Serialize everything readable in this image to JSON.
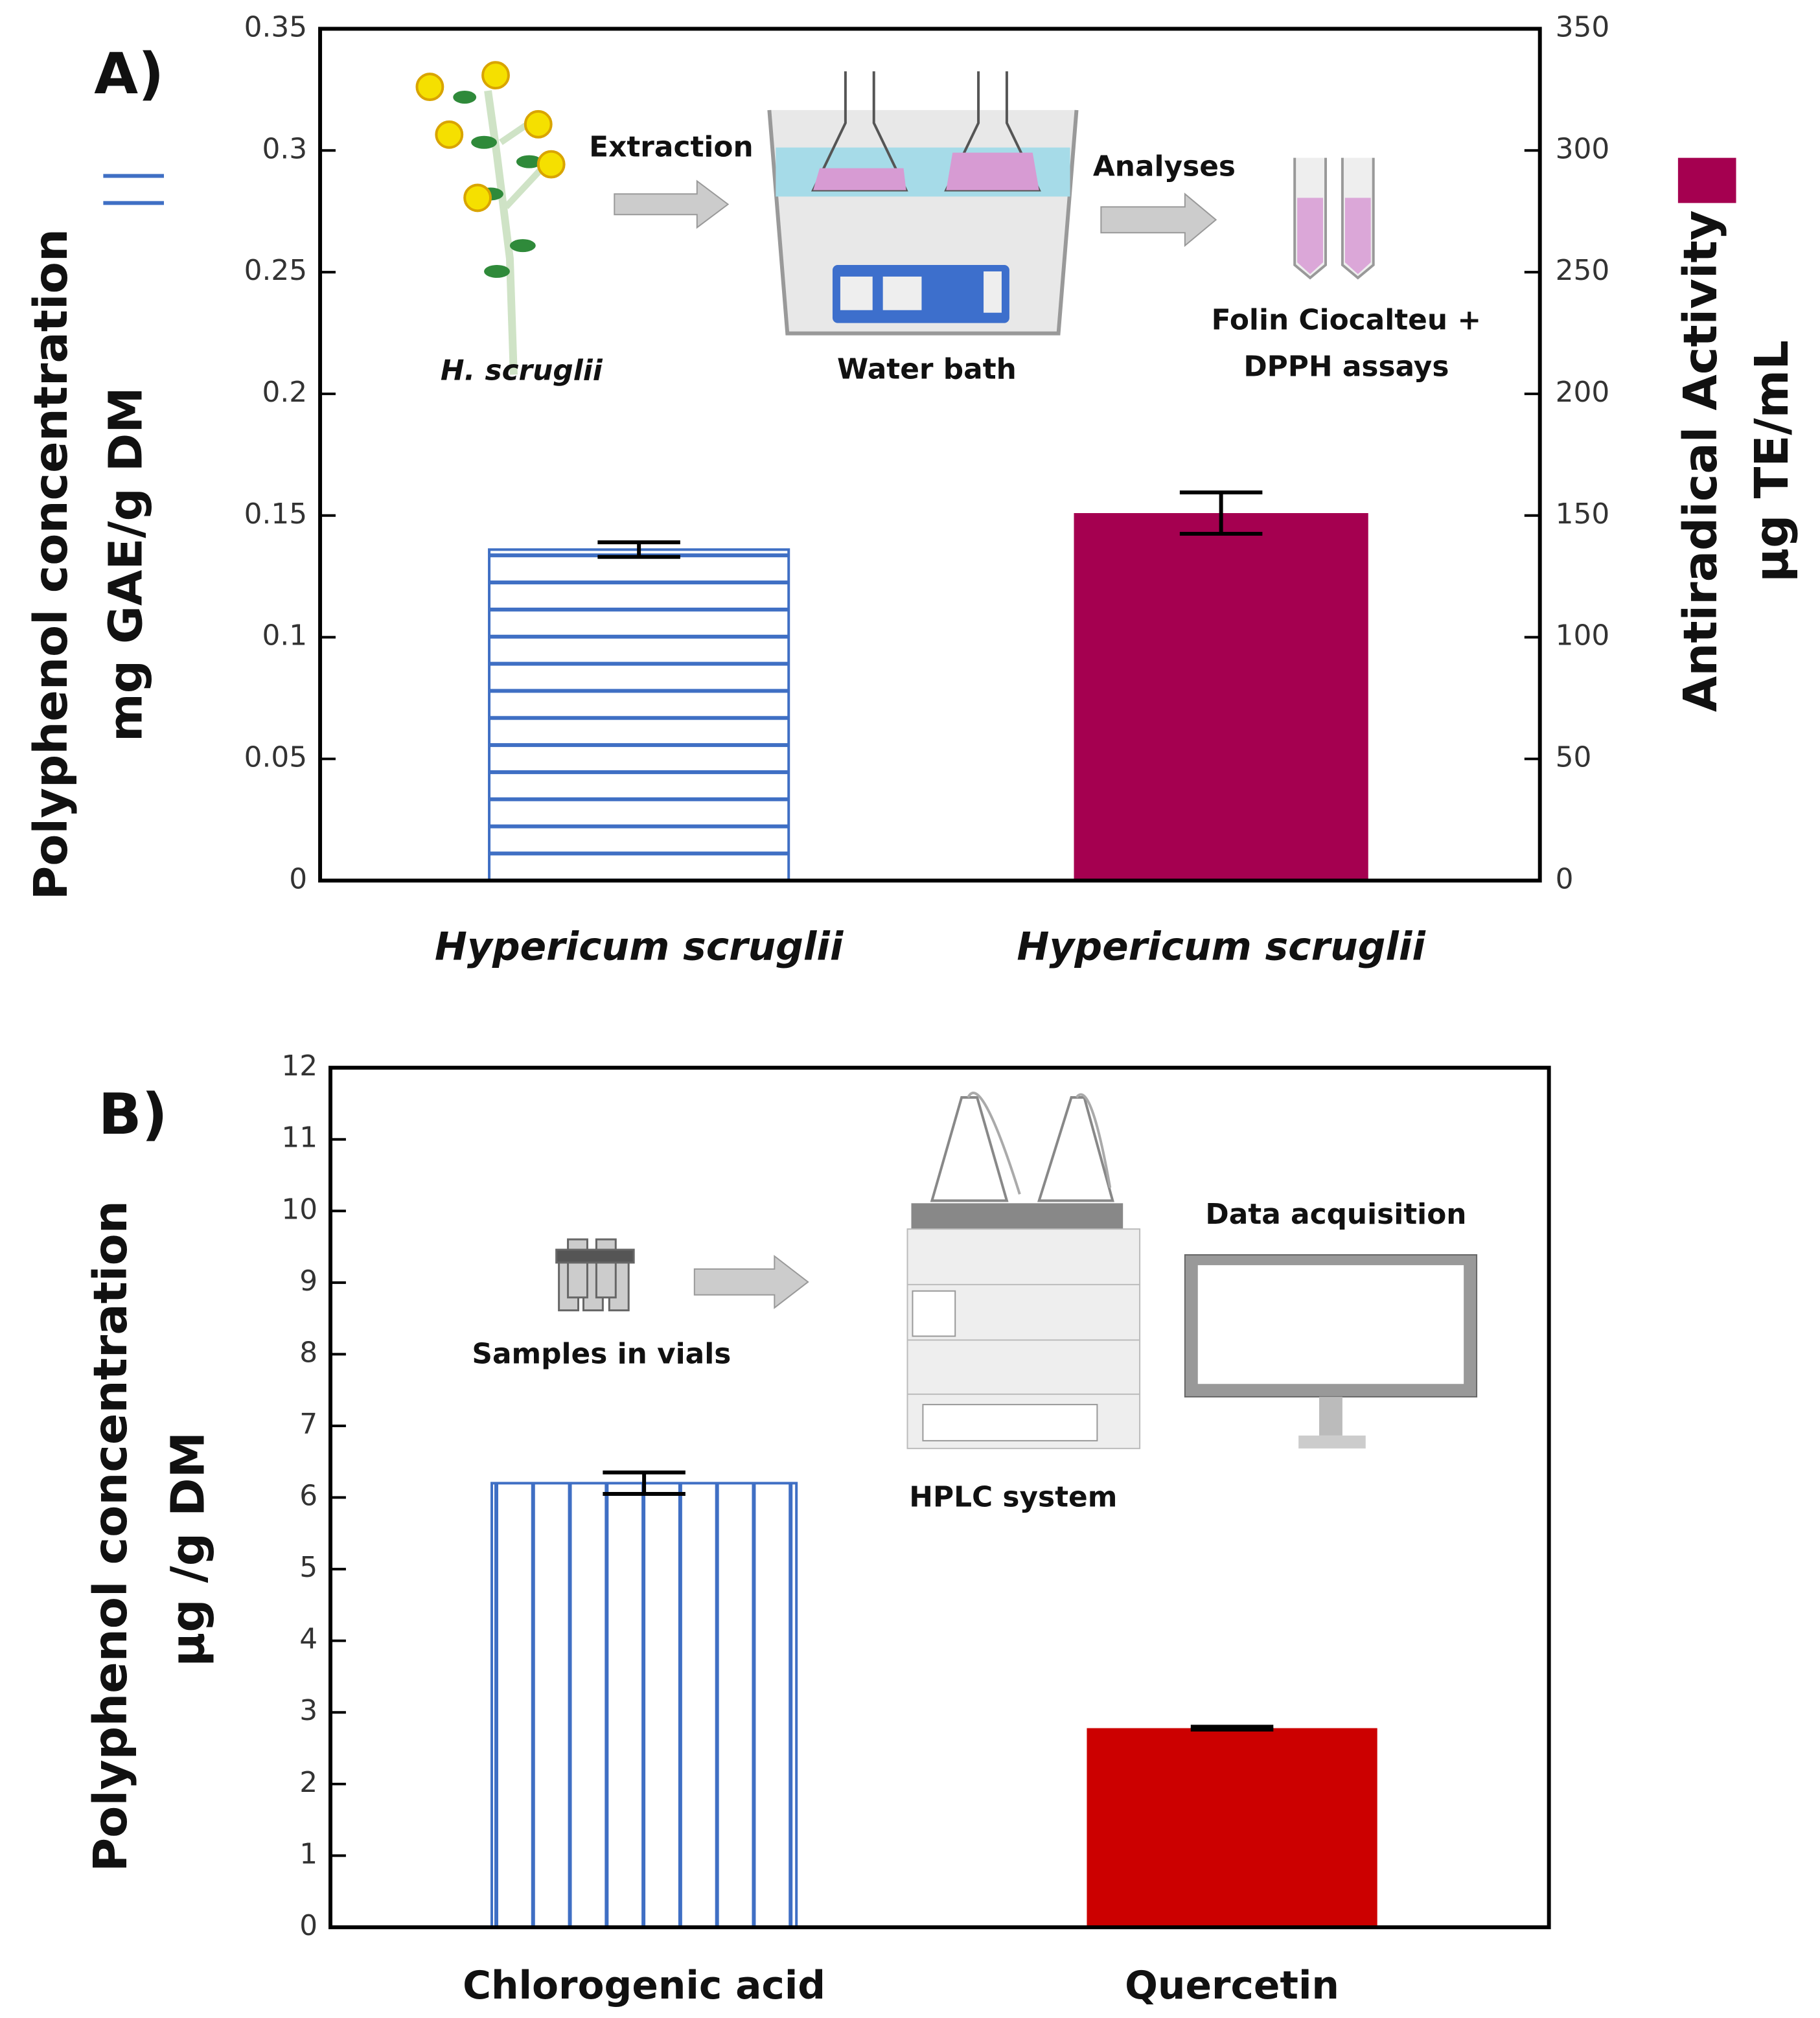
{
  "chart_data": [
    {
      "type": "bar",
      "panel": "A)",
      "categories": [
        "Hypericum scruglii",
        "Hypericum scruglii"
      ],
      "ylabel": [
        "Polyphenol concentration",
        "mg GAE/g DM"
      ],
      "y2label": [
        "Antiradical Activity",
        "µg TE/mL"
      ],
      "ylim": [
        0,
        0.35
      ],
      "yticks": [
        0,
        0.05,
        0.1,
        0.15,
        0.2,
        0.25,
        0.3,
        0.35
      ],
      "y2lim": [
        0,
        350
      ],
      "y2ticks": [
        0,
        50,
        100,
        150,
        200,
        250,
        300,
        350
      ],
      "series": [
        {
          "color": "#3f6fc4",
          "hatch": "horizontal",
          "values": [
            0.136,
            null
          ],
          "errors": [
            0.003,
            null
          ]
        },
        {
          "color": "#a50050",
          "axis": "y2",
          "values": [
            null,
            151
          ],
          "errors": [
            null,
            8.5
          ]
        }
      ],
      "annotations": [
        "Extraction",
        "Analyses",
        "H. scruglii",
        "Water bath",
        "Folin Ciocalteu +",
        "DPPH assays"
      ]
    },
    {
      "type": "bar",
      "panel": "B)",
      "categories": [
        "Chlorogenic acid",
        "Quercetin"
      ],
      "ylabel": [
        "Polyphenol concentration",
        "µg /g DM"
      ],
      "ylim": [
        0,
        12
      ],
      "yticks": [
        0,
        1,
        2,
        3,
        4,
        5,
        6,
        7,
        8,
        9,
        10,
        11,
        12
      ],
      "series": [
        {
          "colors": [
            "#3f6fc4",
            "#cc0000"
          ],
          "hatches": [
            "vertical",
            null
          ],
          "values": [
            6.2,
            2.78
          ],
          "errors": [
            0.15,
            0.02
          ]
        }
      ],
      "annotations": [
        "Samples in vials",
        "HPLC  system",
        "Data acquisition"
      ]
    }
  ]
}
